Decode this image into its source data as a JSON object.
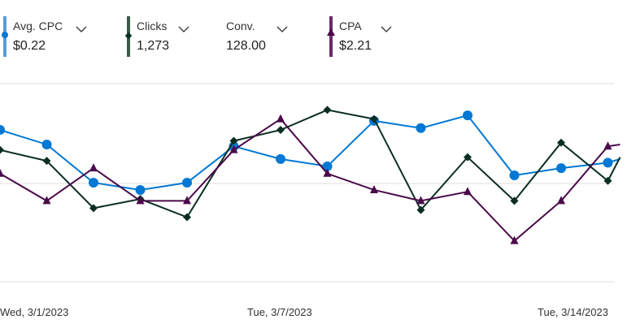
{
  "colors": {
    "cpc": "#0078d4",
    "cpc_bar": "#5b9bd5",
    "clicks": "#0b2e23",
    "clicks_bar": "#3b5a4a",
    "cpa": "#4a0a4a",
    "cpa_bar": "#6a2a6a",
    "grid": "#e1dfdd"
  },
  "metrics": [
    {
      "label": "Avg. CPC",
      "value": "$0.22",
      "icon": "chevron-down-icon"
    },
    {
      "label": "Clicks",
      "value": "1,273",
      "icon": "chevron-down-icon"
    },
    {
      "label": "Conv.",
      "value": "128.00",
      "icon": "chevron-down-icon"
    },
    {
      "label": "CPA",
      "value": "$2.21",
      "icon": "chevron-down-icon"
    }
  ],
  "chart_data": {
    "type": "line",
    "x_labels": [
      "Wed, 3/1/2023",
      "Tue, 3/7/2023",
      "Tue, 3/14/2023"
    ],
    "x": [
      "3/1/2023",
      "3/2/2023",
      "3/3/2023",
      "3/4/2023",
      "3/5/2023",
      "3/6/2023",
      "3/7/2023",
      "3/8/2023",
      "3/9/2023",
      "3/10/2023",
      "3/11/2023",
      "3/12/2023",
      "3/13/2023",
      "3/14/2023"
    ],
    "ylim": [
      0,
      100
    ],
    "grid": true,
    "series": [
      {
        "name": "Avg. CPC",
        "marker": "circle",
        "values": [
          79,
          71,
          50,
          46,
          50,
          70,
          63,
          59,
          84,
          80,
          87,
          54,
          58,
          61
        ],
        "extra_end": 63
      },
      {
        "name": "Clicks",
        "marker": "diamond",
        "values": [
          68,
          62,
          36,
          41,
          31,
          73,
          79,
          90,
          85,
          35,
          64,
          40,
          72,
          51
        ],
        "extra_end": 64
      },
      {
        "name": "CPA",
        "marker": "triangle",
        "values": [
          55,
          40,
          58,
          40,
          40,
          68,
          85,
          55,
          46,
          40,
          45,
          18,
          40,
          70
        ],
        "extra_end": 71
      }
    ]
  }
}
